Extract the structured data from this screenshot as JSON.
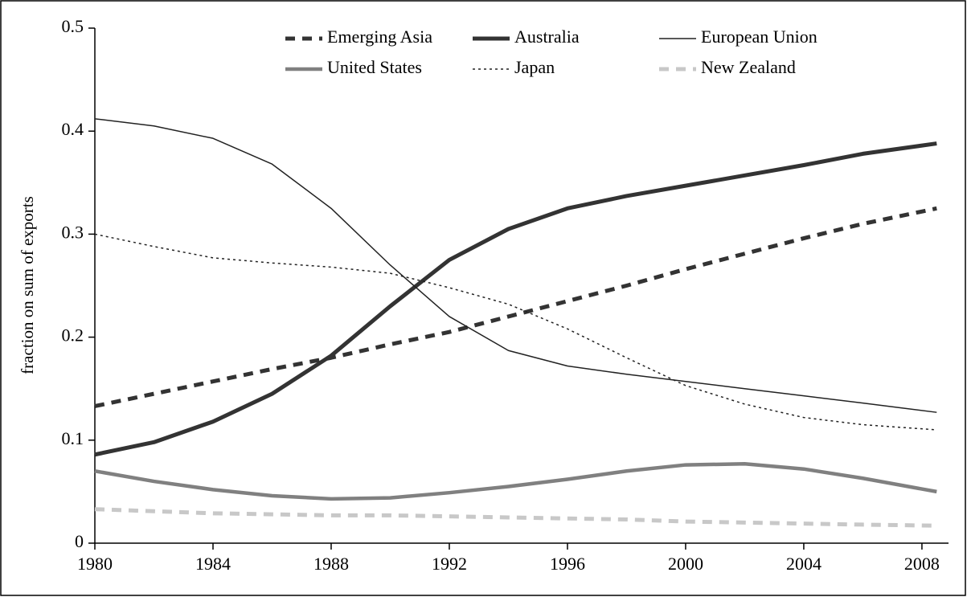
{
  "chart_data": {
    "type": "line",
    "y_label": "fraction on sum of exports",
    "x": [
      1980,
      1982,
      1984,
      1986,
      1988,
      1990,
      1992,
      1994,
      1996,
      1998,
      2000,
      2002,
      2004,
      2006,
      2008.5
    ],
    "xlim": [
      1980,
      2008.9
    ],
    "xticks": [
      1980,
      1984,
      1988,
      1992,
      1996,
      2000,
      2004,
      2008
    ],
    "ylim": [
      0,
      0.5
    ],
    "yticks": [
      0,
      0.1,
      0.2,
      0.3,
      0.4,
      0.5
    ],
    "grid": false,
    "series": [
      {
        "name": "Emerging Asia",
        "color": "#333333",
        "values": [
          0.133,
          0.145,
          0.157,
          0.169,
          0.18,
          0.193,
          0.205,
          0.22,
          0.235,
          0.25,
          0.266,
          0.281,
          0.296,
          0.31,
          0.325
        ]
      },
      {
        "name": "Australia",
        "color": "#333333",
        "values": [
          0.086,
          0.098,
          0.118,
          0.145,
          0.182,
          0.23,
          0.275,
          0.305,
          0.325,
          0.337,
          0.347,
          0.357,
          0.367,
          0.378,
          0.388
        ]
      },
      {
        "name": "European Union",
        "color": "#222222",
        "values": [
          0.412,
          0.405,
          0.393,
          0.368,
          0.325,
          0.27,
          0.22,
          0.187,
          0.172,
          0.164,
          0.157,
          0.15,
          0.143,
          0.136,
          0.127
        ]
      },
      {
        "name": "United States",
        "color": "#808080",
        "values": [
          0.07,
          0.06,
          0.052,
          0.046,
          0.043,
          0.044,
          0.049,
          0.055,
          0.062,
          0.07,
          0.076,
          0.077,
          0.072,
          0.063,
          0.05
        ]
      },
      {
        "name": "Japan",
        "color": "#222222",
        "values": [
          0.3,
          0.288,
          0.277,
          0.272,
          0.268,
          0.262,
          0.248,
          0.232,
          0.208,
          0.18,
          0.153,
          0.135,
          0.122,
          0.115,
          0.11
        ]
      },
      {
        "name": "New Zealand",
        "color": "#c8c8c8",
        "values": [
          0.033,
          0.031,
          0.029,
          0.028,
          0.027,
          0.027,
          0.026,
          0.025,
          0.024,
          0.023,
          0.021,
          0.02,
          0.019,
          0.018,
          0.017
        ]
      }
    ]
  }
}
